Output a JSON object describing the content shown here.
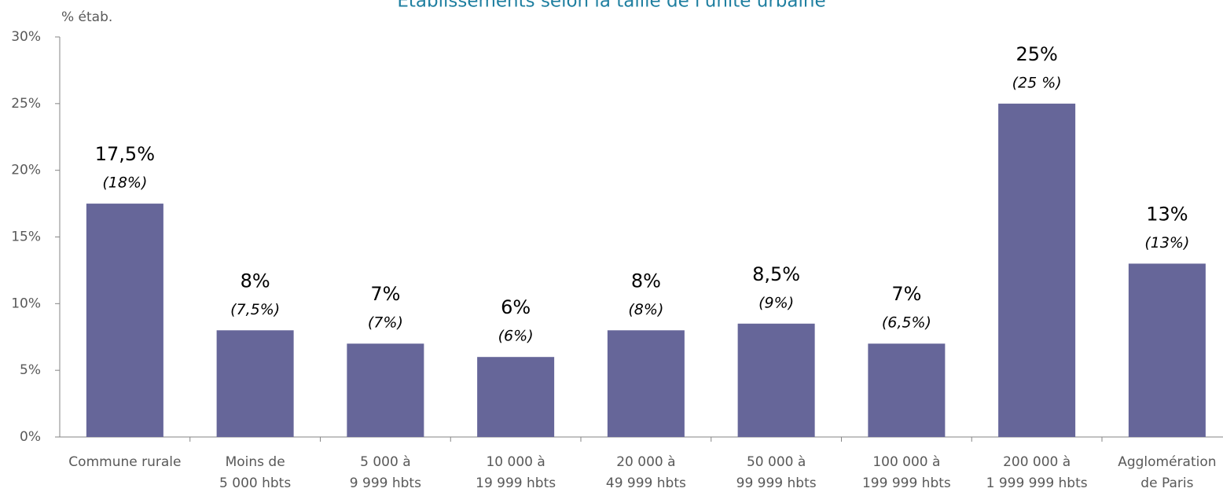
{
  "chart_data": {
    "type": "bar",
    "title": "Établissements selon la taille de l'unité urbaine",
    "y_label": "% étab.",
    "categories": [
      [
        "Commune rurale"
      ],
      [
        "Moins de",
        "5 000 hbts"
      ],
      [
        "5 000 à",
        "9 999 hbts"
      ],
      [
        "10 000 à",
        "19 999 hbts"
      ],
      [
        "20 000 à",
        "49 999 hbts"
      ],
      [
        "50 000 à",
        "99 999 hbts"
      ],
      [
        "100 000 à",
        "199 999 hbts"
      ],
      [
        "200 000 à",
        "1 999 999 hbts"
      ],
      [
        "Agglomération",
        "de Paris"
      ]
    ],
    "values": [
      17.5,
      8,
      7,
      6,
      8,
      8.5,
      7,
      25,
      13
    ],
    "value_labels": [
      "17,5%",
      "8%",
      "7%",
      "6%",
      "8%",
      "8,5%",
      "7%",
      "25%",
      "13%"
    ],
    "annotations": [
      "(18%)",
      "(7,5%)",
      "(7%)",
      "(6%)",
      "(8%)",
      "(9%)",
      "(6,5%)",
      "(25 %)",
      "(13%)"
    ],
    "color": "#666699",
    "ylim": [
      0,
      30
    ],
    "yticks": [
      {
        "value": 0,
        "label": "0%"
      },
      {
        "value": 5,
        "label": "5%"
      },
      {
        "value": 10,
        "label": "10%"
      },
      {
        "value": 15,
        "label": "15%"
      },
      {
        "value": 20,
        "label": "20%"
      },
      {
        "value": 25,
        "label": "25%"
      },
      {
        "value": 30,
        "label": "30%"
      }
    ],
    "grid": false
  }
}
